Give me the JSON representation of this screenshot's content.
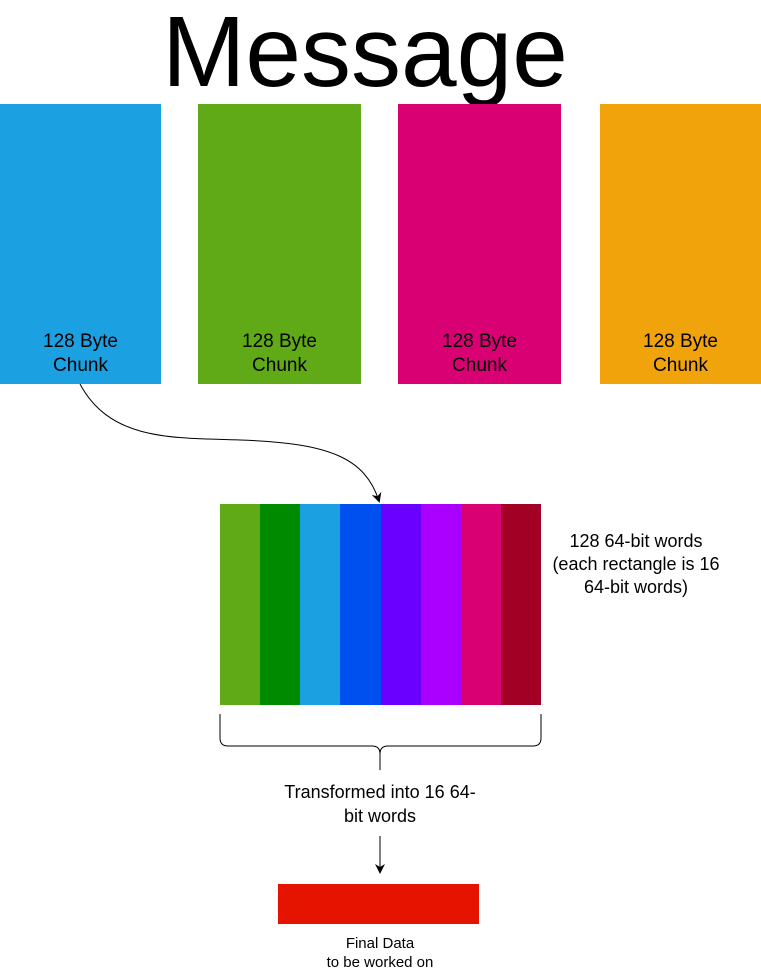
{
  "title": "Message",
  "chunks": [
    {
      "line1": "128 Byte",
      "line2": "Chunk",
      "color": "#1BA1E2"
    },
    {
      "line1": "128 Byte",
      "line2": "Chunk",
      "color": "#60A917"
    },
    {
      "line1": "128 Byte",
      "line2": "Chunk",
      "color": "#D80073"
    },
    {
      "line1": "128 Byte",
      "line2": "Chunk",
      "color": "#F0A30A"
    }
  ],
  "words": {
    "colors": [
      "#60A917",
      "#008A00",
      "#1BA1E2",
      "#0050EF",
      "#6A00FF",
      "#AA00FF",
      "#D80073",
      "#A20025"
    ],
    "caption": {
      "line1": "128 64-bit words",
      "line2": "(each rectangle is 16",
      "line3": "64-bit words)"
    }
  },
  "transform": {
    "line1": "Transformed into 16 64-",
    "line2": "bit words"
  },
  "final": {
    "color": "#E51400",
    "line1": "Final Data",
    "line2": "to be worked on"
  }
}
